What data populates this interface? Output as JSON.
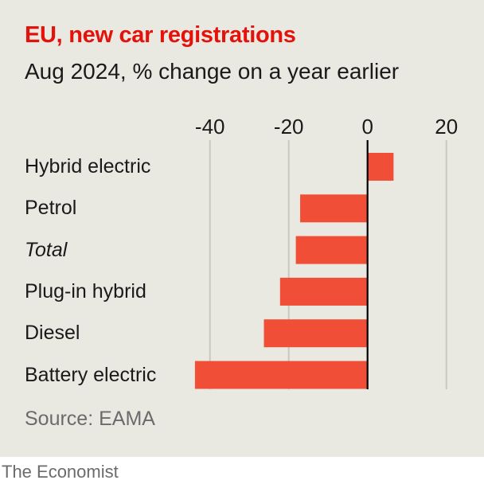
{
  "chart_data": {
    "type": "bar",
    "orientation": "horizontal",
    "title": "EU, new car registrations",
    "subtitle": "Aug 2024, % change on a year earlier",
    "categories": [
      "Hybrid electric",
      "Petrol",
      "Total",
      "Plug-in hybrid",
      "Diesel",
      "Battery electric"
    ],
    "italic_categories": [
      "Total"
    ],
    "values": [
      6.6,
      -17.1,
      -18.2,
      -22.2,
      -26.3,
      -43.8
    ],
    "xlim": [
      -45,
      22
    ],
    "xticks": [
      -40,
      -20,
      0,
      20
    ],
    "xtick_labels": [
      "-40",
      "-20",
      "0",
      "20"
    ],
    "grid": true,
    "bar_color": "#f04e37",
    "source": "Source: EAMA"
  },
  "brand": "The Economist"
}
